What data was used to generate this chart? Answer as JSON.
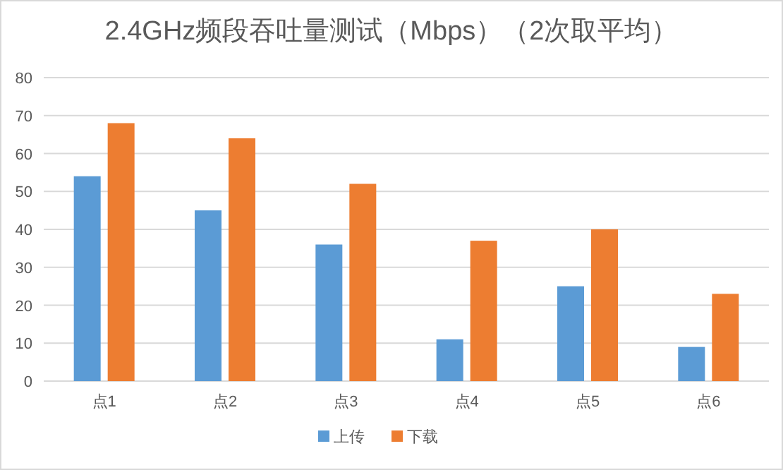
{
  "chart_data": {
    "type": "bar",
    "title": "2.4GHz频段吞吐量测试（Mbps）（2次取平均）",
    "categories": [
      "点1",
      "点2",
      "点3",
      "点4",
      "点5",
      "点6"
    ],
    "series": [
      {
        "name": "上传",
        "color": "#5b9bd5",
        "values": [
          54,
          45,
          36,
          11,
          25,
          9
        ]
      },
      {
        "name": "下载",
        "color": "#ed7d31",
        "values": [
          68,
          64,
          52,
          37,
          40,
          23
        ]
      }
    ],
    "ylim": [
      0,
      80
    ],
    "yticks": [
      0,
      10,
      20,
      30,
      40,
      50,
      60,
      70,
      80
    ],
    "grid": "y",
    "legend": "bottom"
  }
}
